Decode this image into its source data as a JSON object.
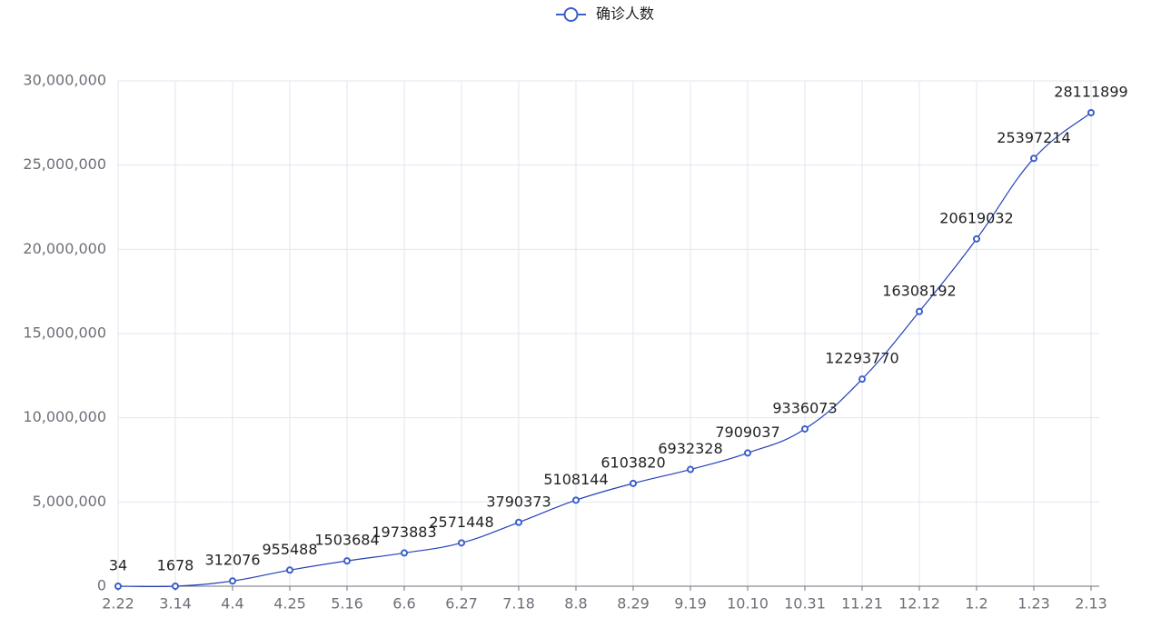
{
  "chart_data": {
    "type": "line",
    "categories": [
      "2.22",
      "3.14",
      "4.4",
      "4.25",
      "5.16",
      "6.6",
      "6.27",
      "7.18",
      "8.8",
      "8.29",
      "9.19",
      "10.10",
      "10.31",
      "11.21",
      "12.12",
      "1.2",
      "1.23",
      "2.13"
    ],
    "series": [
      {
        "name": "确诊人数",
        "color": "#3b5fc9",
        "values": [
          34,
          1678,
          312076,
          955488,
          1503684,
          1973883,
          2571448,
          3790373,
          5108144,
          6103820,
          6932328,
          7909037,
          9336073,
          12293770,
          16308192,
          20619032,
          25397214,
          28111899
        ]
      }
    ],
    "ylim": [
      0,
      30000000
    ],
    "yticks": [
      0,
      {
        "value": 5000000,
        "label": "5,000,000"
      },
      {
        "value": 10000000,
        "label": "10,000,000"
      },
      {
        "value": 15000000,
        "label": "15,000,000"
      },
      {
        "value": 20000000,
        "label": "20,000,000"
      },
      {
        "value": 25000000,
        "label": "25,000,000"
      },
      {
        "value": 30000000,
        "label": "30,000,000"
      }
    ],
    "grid": true,
    "smooth": true,
    "data_labels": true,
    "legend": "top"
  }
}
